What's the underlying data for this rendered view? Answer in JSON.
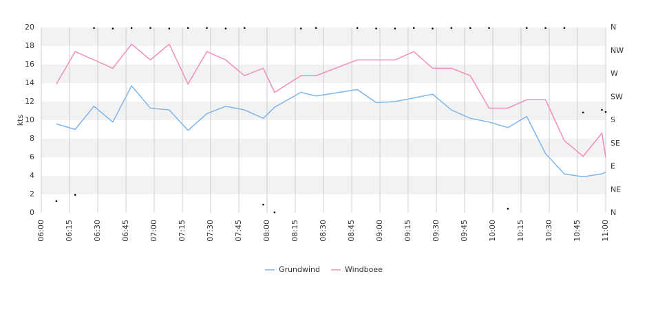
{
  "chart_data": {
    "type": "line",
    "ylabel": "kts",
    "x": [
      "06:08",
      "06:18",
      "06:28",
      "06:38",
      "06:48",
      "06:58",
      "07:08",
      "07:18",
      "07:28",
      "07:38",
      "07:48",
      "07:58",
      "08:04",
      "08:18",
      "08:26",
      "08:48",
      "08:58",
      "09:08",
      "09:18",
      "09:28",
      "09:38",
      "09:48",
      "09:58",
      "10:08",
      "10:18",
      "10:28",
      "10:38",
      "10:48",
      "10:58",
      "11:00"
    ],
    "series": [
      {
        "name": "Grundwind",
        "color": "#7cb5ec",
        "values": [
          9.6,
          9.0,
          11.5,
          9.8,
          13.7,
          11.3,
          11.1,
          8.9,
          10.7,
          11.5,
          11.1,
          10.2,
          11.4,
          13.0,
          12.6,
          13.3,
          11.9,
          12.0,
          12.4,
          12.8,
          11.1,
          10.2,
          9.8,
          9.2,
          10.4,
          6.4,
          4.2,
          3.9,
          4.2,
          4.4
        ]
      },
      {
        "name": "Windboee",
        "color": "#f28cbc",
        "values": [
          13.9,
          17.4,
          16.5,
          15.6,
          18.2,
          16.5,
          18.2,
          13.9,
          17.4,
          16.5,
          14.8,
          15.6,
          13.0,
          14.8,
          14.8,
          16.5,
          16.5,
          16.5,
          17.4,
          15.6,
          15.6,
          14.8,
          11.3,
          11.3,
          12.2,
          12.2,
          7.8,
          6.1,
          8.6,
          6.0
        ]
      }
    ],
    "direction": {
      "axis": "y2",
      "color": "#000000",
      "x": [
        "06:08",
        "06:18",
        "06:28",
        "06:38",
        "06:48",
        "06:58",
        "07:08",
        "07:18",
        "07:28",
        "07:38",
        "07:48",
        "07:58",
        "08:04",
        "08:18",
        "08:26",
        "08:48",
        "08:58",
        "09:08",
        "09:18",
        "09:28",
        "09:38",
        "09:48",
        "09:58",
        "10:08",
        "10:18",
        "10:28",
        "10:38",
        "10:48",
        "10:58",
        "11:00"
      ],
      "values": [
        23,
        35,
        359,
        358,
        359,
        359,
        358,
        359,
        359,
        358,
        359,
        16,
        1,
        358,
        359,
        359,
        358,
        358,
        359,
        358,
        359,
        359,
        359,
        8,
        359,
        359,
        359,
        195,
        200,
        196
      ]
    },
    "xlim": [
      "06:00",
      "11:00"
    ],
    "xticks": [
      "06:00",
      "06:15",
      "06:30",
      "06:45",
      "07:00",
      "07:15",
      "07:30",
      "07:45",
      "08:00",
      "08:15",
      "08:30",
      "08:45",
      "09:00",
      "09:15",
      "09:30",
      "09:45",
      "10:00",
      "10:15",
      "10:30",
      "10:45",
      "11:00"
    ],
    "ylim": [
      0,
      20
    ],
    "yticks": [
      0,
      2,
      4,
      6,
      8,
      10,
      12,
      14,
      16,
      18,
      20
    ],
    "y2lim": [
      0,
      360
    ],
    "y2ticks": [
      {
        "value": 0,
        "label": "N"
      },
      {
        "value": 45,
        "label": "NE"
      },
      {
        "value": 90,
        "label": "E"
      },
      {
        "value": 135,
        "label": "SE"
      },
      {
        "value": 180,
        "label": "S"
      },
      {
        "value": 225,
        "label": "SW"
      },
      {
        "value": 270,
        "label": "W"
      },
      {
        "value": 315,
        "label": "NW"
      },
      {
        "value": 360,
        "label": "N"
      }
    ],
    "grid": true,
    "legend": "bottom"
  }
}
